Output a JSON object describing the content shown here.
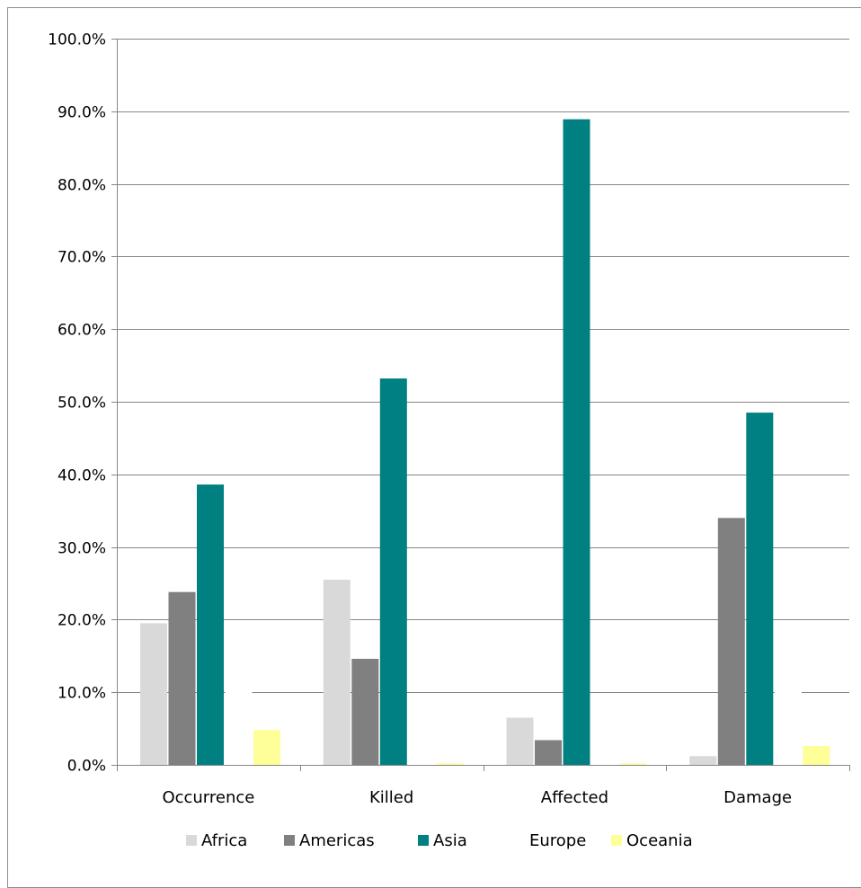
{
  "chart_data": {
    "type": "bar",
    "title": "",
    "xlabel": "",
    "ylabel": "",
    "categories": [
      "Occurrence",
      "Killed",
      "Affected",
      "Damage"
    ],
    "ylim": [
      0,
      100
    ],
    "y_ticks": [
      "0.0%",
      "10.0%",
      "20.0%",
      "30.0%",
      "40.0%",
      "50.0%",
      "60.0%",
      "70.0%",
      "80.0%",
      "90.0%",
      "100.0%"
    ],
    "grid": true,
    "legend_position": "bottom",
    "series": [
      {
        "name": "Africa",
        "color": "#d9d9d9",
        "values": [
          19.5,
          25.5,
          6.5,
          1.2
        ]
      },
      {
        "name": "Americas",
        "color": "#808080",
        "values": [
          23.8,
          14.6,
          3.4,
          34.0
        ]
      },
      {
        "name": "Asia",
        "color": "#008080",
        "values": [
          38.6,
          53.2,
          88.9,
          48.5
        ]
      },
      {
        "name": "Europe",
        "color": "#ffffff",
        "values": [
          13.3,
          6.5,
          1.0,
          13.8
        ]
      },
      {
        "name": "Oceania",
        "color": "#ffff99",
        "values": [
          4.8,
          0.2,
          0.2,
          2.6
        ]
      }
    ]
  }
}
